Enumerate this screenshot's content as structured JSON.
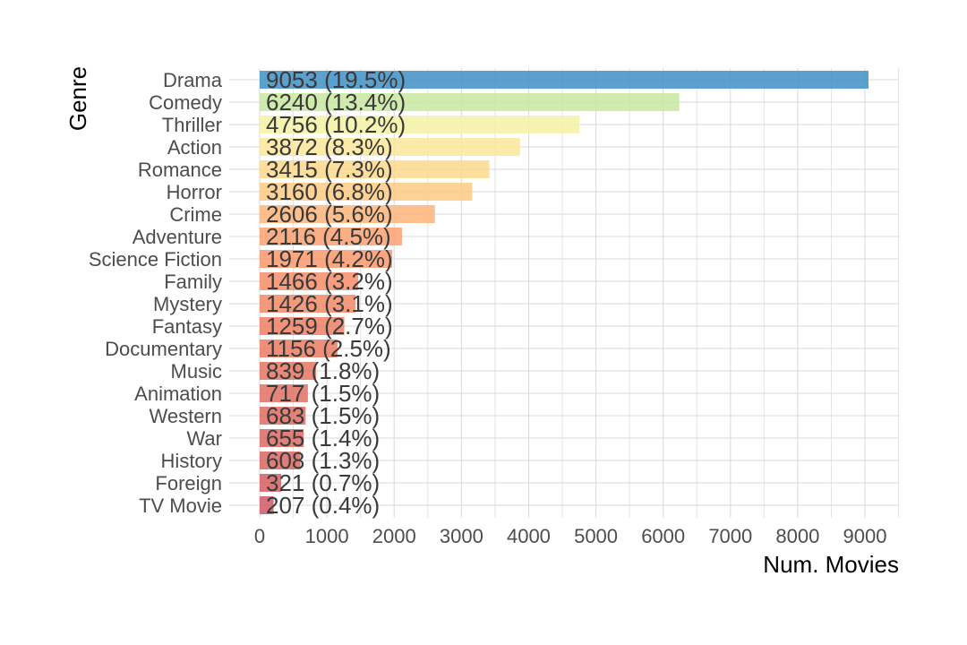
{
  "chart_data": {
    "type": "bar",
    "orientation": "horizontal",
    "xlabel": "Num. Movies",
    "ylabel": "Genre",
    "xlim": [
      0,
      9500
    ],
    "xticks": [
      0,
      1000,
      2000,
      3000,
      4000,
      5000,
      6000,
      7000,
      8000,
      9000
    ],
    "grid": true,
    "legend": "none",
    "categories": [
      "Drama",
      "Comedy",
      "Thriller",
      "Action",
      "Romance",
      "Horror",
      "Crime",
      "Adventure",
      "Science Fiction",
      "Family",
      "Mystery",
      "Fantasy",
      "Documentary",
      "Music",
      "Animation",
      "Western",
      "War",
      "History",
      "Foreign",
      "TV Movie"
    ],
    "values": [
      9053,
      6240,
      4756,
      3872,
      3415,
      3160,
      2606,
      2116,
      1971,
      1466,
      1426,
      1259,
      1156,
      839,
      717,
      683,
      655,
      608,
      321,
      207
    ],
    "labels": [
      "9053 (19.5%)",
      "6240 (13.4%)",
      "4756 (10.2%)",
      "3872 (8.3%)",
      "3415 (7.3%)",
      "3160 (6.8%)",
      "2606 (5.6%)",
      "2116 (4.5%)",
      "1971 (4.2%)",
      "1466 (3.2%)",
      "1426 (3.1%)",
      "1259 (2.7%)",
      "1156 (2.5%)",
      "839 (1.8%)",
      "717 (1.5%)",
      "683 (1.5%)",
      "655 (1.4%)",
      "608 (1.3%)",
      "321 (0.7%)",
      "207 (0.4%)"
    ],
    "colors": [
      "#3f91c4",
      "#c8e8a0",
      "#f4f2a4",
      "#fce69a",
      "#fdd88c",
      "#fdca82",
      "#fdb47a",
      "#fca070",
      "#fa986c",
      "#f58d68",
      "#f28866",
      "#ee8064",
      "#eb7c62",
      "#e57462",
      "#e27062",
      "#df6c62",
      "#dc6862",
      "#da6662",
      "#d65e62",
      "#d05864"
    ]
  }
}
